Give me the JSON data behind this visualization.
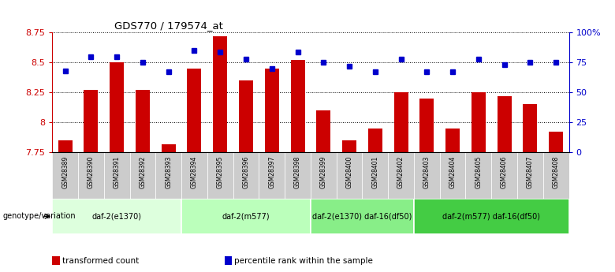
{
  "title": "GDS770 / 179574_at",
  "samples": [
    "GSM28389",
    "GSM28390",
    "GSM28391",
    "GSM28392",
    "GSM28393",
    "GSM28394",
    "GSM28395",
    "GSM28396",
    "GSM28397",
    "GSM28398",
    "GSM28399",
    "GSM28400",
    "GSM28401",
    "GSM28402",
    "GSM28403",
    "GSM28404",
    "GSM28405",
    "GSM28406",
    "GSM28407",
    "GSM28408"
  ],
  "bar_values": [
    7.85,
    8.27,
    8.5,
    8.27,
    7.82,
    8.45,
    8.72,
    8.35,
    8.45,
    8.52,
    8.1,
    7.85,
    7.95,
    8.25,
    8.2,
    7.95,
    8.25,
    8.22,
    8.15,
    7.92
  ],
  "dot_values": [
    68,
    80,
    80,
    75,
    67,
    85,
    84,
    78,
    70,
    84,
    75,
    72,
    67,
    78,
    67,
    67,
    78,
    73,
    75,
    75
  ],
  "ymin": 7.75,
  "ymax": 8.75,
  "yticks": [
    7.75,
    8.0,
    8.25,
    8.5,
    8.75
  ],
  "ytick_labels": [
    "7.75",
    "8",
    "8.25",
    "8.5",
    "8.75"
  ],
  "y2min": 0,
  "y2max": 100,
  "y2ticks": [
    0,
    25,
    50,
    75,
    100
  ],
  "y2ticklabels": [
    "0",
    "25",
    "50",
    "75",
    "100%"
  ],
  "bar_color": "#cc0000",
  "dot_color": "#0000cc",
  "genotype_groups": [
    {
      "label": "daf-2(e1370)",
      "start": 0,
      "end": 4,
      "color": "#ddffdd"
    },
    {
      "label": "daf-2(m577)",
      "start": 5,
      "end": 9,
      "color": "#bbffbb"
    },
    {
      "label": "daf-2(e1370) daf-16(df50)",
      "start": 10,
      "end": 13,
      "color": "#88ee88"
    },
    {
      "label": "daf-2(m577) daf-16(df50)",
      "start": 14,
      "end": 19,
      "color": "#44cc44"
    }
  ],
  "xtick_bg_odd": "#c8c8c8",
  "xtick_bg_even": "#b8b8b8",
  "legend_bar_label": "transformed count",
  "legend_dot_label": "percentile rank within the sample",
  "xlabel_genotype": "genotype/variation"
}
